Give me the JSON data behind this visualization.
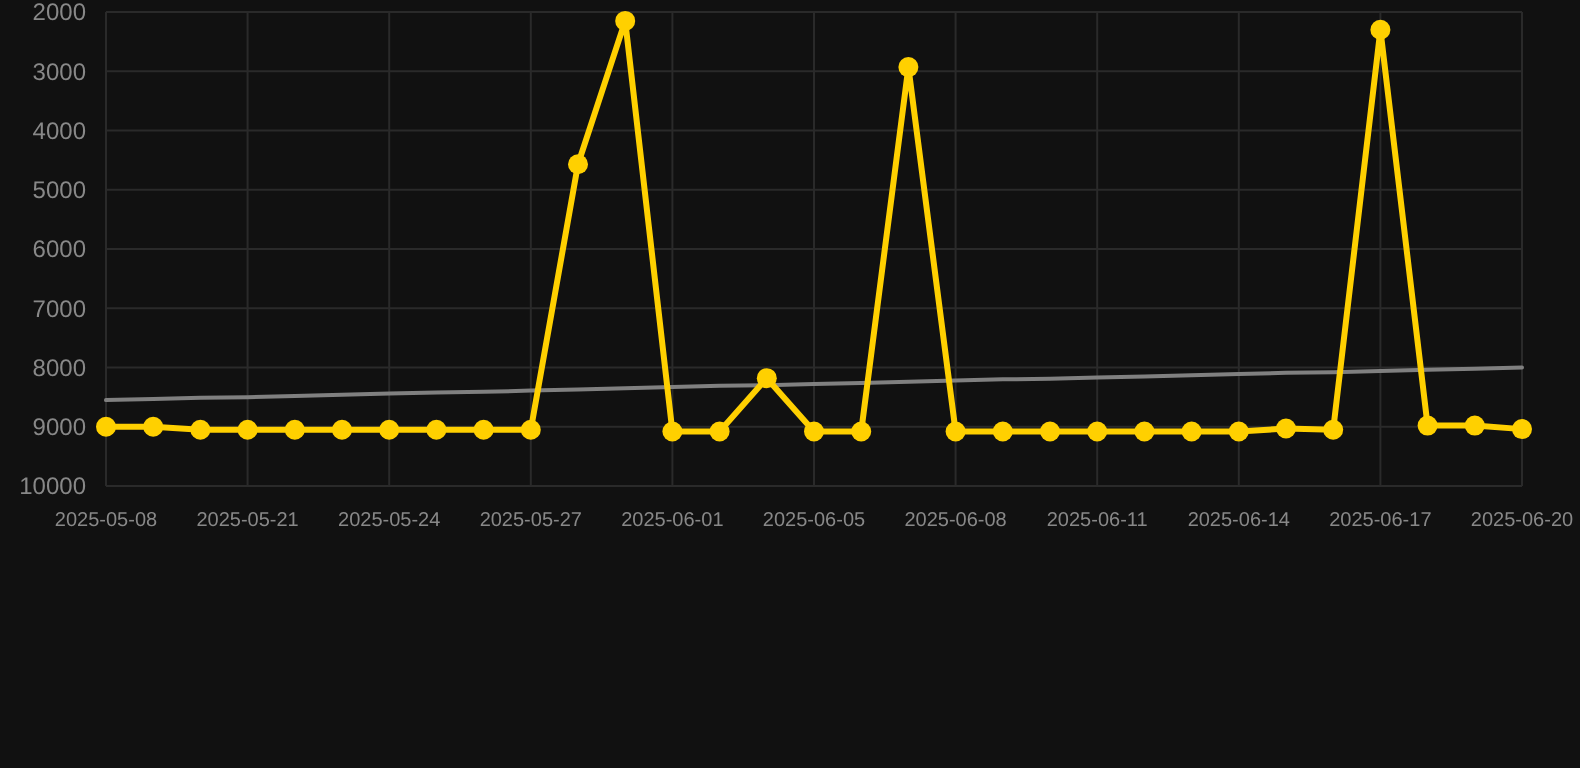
{
  "chart_data": {
    "type": "line",
    "categories": [
      "2025-05-08",
      null,
      null,
      "2025-05-21",
      null,
      null,
      "2025-05-24",
      null,
      null,
      "2025-05-27",
      null,
      null,
      "2025-06-01",
      null,
      null,
      "2025-06-05",
      null,
      null,
      "2025-06-08",
      null,
      null,
      "2025-06-11",
      null,
      null,
      "2025-06-14",
      null,
      null,
      "2025-06-17",
      null,
      null,
      "2025-06-20"
    ],
    "series": [
      {
        "color": "#ffd000",
        "marker": "circle",
        "values": [
          9000,
          9000,
          9050,
          9050,
          9050,
          9050,
          9050,
          9050,
          9050,
          9050,
          4570,
          2150,
          9080,
          9080,
          8180,
          9080,
          9080,
          2930,
          9080,
          9080,
          9080,
          9080,
          9080,
          9080,
          9080,
          9030,
          9050,
          2300,
          8980,
          8980,
          9040
        ]
      },
      {
        "type": "line",
        "color": "#808080",
        "marker": "none",
        "values": [
          8550,
          8530,
          8510,
          8500,
          8480,
          8460,
          8440,
          8420,
          8410,
          8390,
          8370,
          8350,
          8330,
          8310,
          8300,
          8280,
          8260,
          8240,
          8220,
          8200,
          8190,
          8170,
          8150,
          8130,
          8110,
          8090,
          8080,
          8060,
          8040,
          8020,
          8000
        ]
      }
    ],
    "ylim": [
      10000,
      2000
    ],
    "yticks": [
      2000,
      3000,
      4000,
      5000,
      6000,
      7000,
      8000,
      9000,
      10000
    ],
    "grid": true
  }
}
